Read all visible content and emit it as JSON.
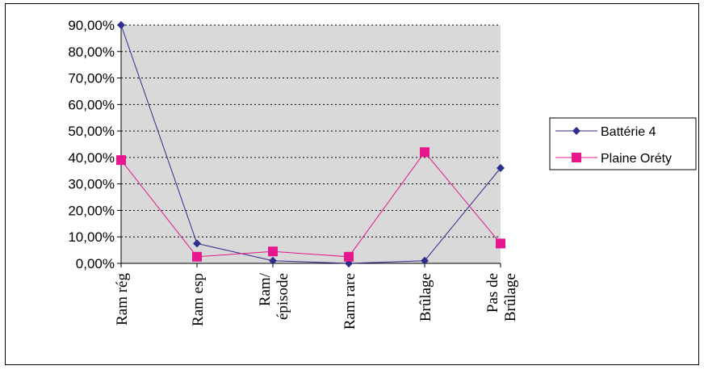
{
  "chart_data": {
    "type": "line",
    "title": "",
    "xlabel": "",
    "ylabel": "",
    "categories": [
      [
        "Ram rég"
      ],
      [
        "Ram esp"
      ],
      [
        "Ram/",
        "épisode"
      ],
      [
        "Ram rare"
      ],
      [
        "Brûlage"
      ],
      [
        "Pas de",
        "Brûlage"
      ]
    ],
    "ylim": [
      0,
      90
    ],
    "y_ticks": [
      "0,00%",
      "10,00%",
      "20,00%",
      "30,00%",
      "40,00%",
      "50,00%",
      "60,00%",
      "70,00%",
      "80,00%",
      "90,00%"
    ],
    "grid": true,
    "plot_background": "#d9d9d9",
    "legend_position": "right",
    "series": [
      {
        "name": "Battérie 4",
        "color": "#2e2e8c",
        "marker": "diamond",
        "values": [
          90.0,
          7.5,
          1.0,
          0.0,
          1.0,
          36.0
        ]
      },
      {
        "name": "Plaine Oréty",
        "color": "#e6178c",
        "marker": "square",
        "values": [
          39.0,
          2.5,
          4.5,
          2.5,
          42.0,
          7.5
        ]
      }
    ]
  }
}
